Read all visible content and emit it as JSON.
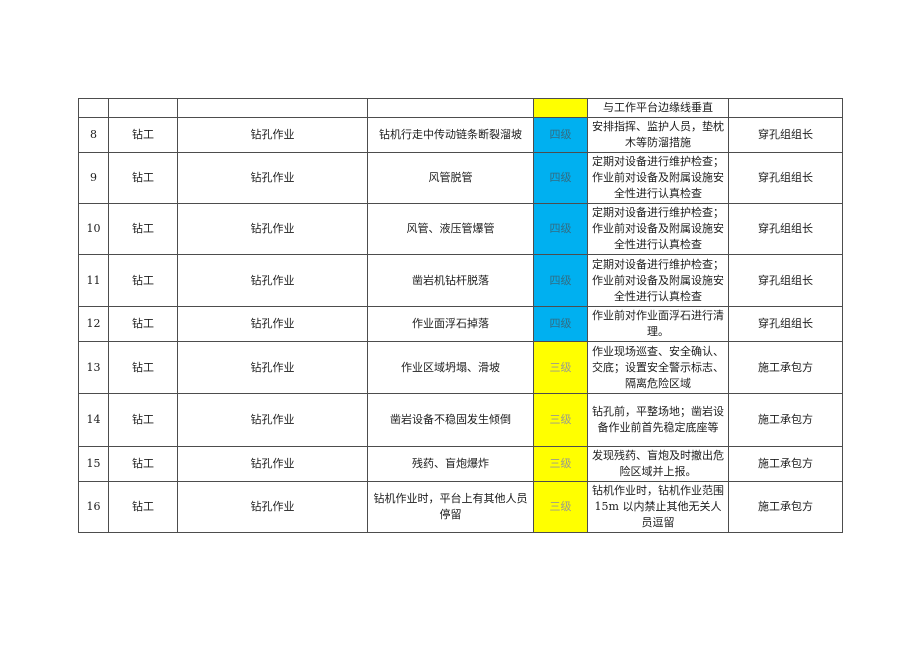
{
  "colors": {
    "level4_bg": "#00b0f0",
    "level3_bg": "#ffff00",
    "border": "#4d4d4d",
    "text": "#1c1c1c",
    "page_bg": "#ffffff"
  },
  "table": {
    "description": "risk-assessment-table-rows-8-16",
    "rows": [
      {
        "no": "",
        "worker": "",
        "operation": "",
        "hazard": "",
        "level": "",
        "level_color": "yellow",
        "measures": "与工作平台边缘线垂直",
        "responsible": ""
      },
      {
        "no": "8",
        "worker": "钻工",
        "operation": "钻孔作业",
        "hazard": "钻机行走中传动链条断裂溜坡",
        "level": "四级",
        "level_color": "blue",
        "measures": "安排指挥、监护人员，垫枕木等防溜措施",
        "responsible": "穿孔组组长"
      },
      {
        "no": "9",
        "worker": "钻工",
        "operation": "钻孔作业",
        "hazard": "风管脱管",
        "level": "四级",
        "level_color": "blue",
        "measures": "定期对设备进行维护检查；作业前对设备及附属设施安全性进行认真检查",
        "responsible": "穿孔组组长"
      },
      {
        "no": "10",
        "worker": "钻工",
        "operation": "钻孔作业",
        "hazard": "风管、液压管爆管",
        "level": "四级",
        "level_color": "blue",
        "measures": "定期对设备进行维护检查；作业前对设备及附属设施安全性进行认真检查",
        "responsible": "穿孔组组长"
      },
      {
        "no": "11",
        "worker": "钻工",
        "operation": "钻孔作业",
        "hazard": "凿岩机钻杆脱落",
        "level": "四级",
        "level_color": "blue",
        "measures": "定期对设备进行维护检查；作业前对设备及附属设施安全性进行认真检查",
        "responsible": "穿孔组组长"
      },
      {
        "no": "12",
        "worker": "钻工",
        "operation": "钻孔作业",
        "hazard": "作业面浮石掉落",
        "level": "四级",
        "level_color": "blue",
        "measures": "作业前对作业面浮石进行清理。",
        "responsible": "穿孔组组长"
      },
      {
        "no": "13",
        "worker": "钻工",
        "operation": "钻孔作业",
        "hazard": "作业区域坍塌、滑坡",
        "level": "三级",
        "level_color": "yellow",
        "measures": "作业现场巡查、安全确认、交底；设置安全警示标志、隔离危险区域",
        "responsible": "施工承包方"
      },
      {
        "no": "14",
        "worker": "钻工",
        "operation": "钻孔作业",
        "hazard": "凿岩设备不稳固发生倾倒",
        "level": "三级",
        "level_color": "yellow",
        "measures": "钻孔前，平整场地；凿岩设备作业前首先稳定底座等",
        "responsible": "施工承包方"
      },
      {
        "no": "15",
        "worker": "钻工",
        "operation": "钻孔作业",
        "hazard": "残药、盲炮爆炸",
        "level": "三级",
        "level_color": "yellow",
        "measures": "发现残药、盲炮及时撤出危险区域并上报。",
        "responsible": "施工承包方"
      },
      {
        "no": "16",
        "worker": "钻工",
        "operation": "钻孔作业",
        "hazard": "钻机作业时，平台上有其他人员停留",
        "level": "三级",
        "level_color": "yellow",
        "measures": "钻机作业时，钻机作业范围15m 以内禁止其他无关人员逗留",
        "responsible": "施工承包方"
      }
    ]
  }
}
